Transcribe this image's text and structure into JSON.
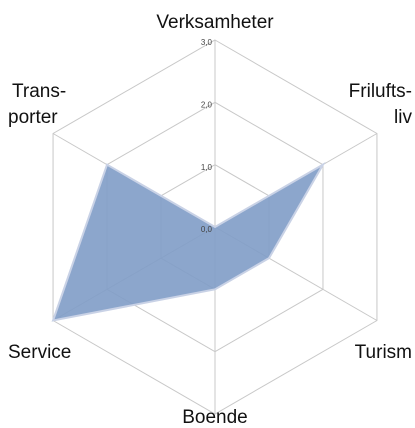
{
  "chart_data": {
    "type": "radar",
    "categories": [
      [
        "Verksamheter"
      ],
      [
        "Frilufts-",
        "liv"
      ],
      [
        "Turism"
      ],
      [
        "Boende"
      ],
      [
        "Service"
      ],
      [
        "Trans-",
        "porter"
      ]
    ],
    "values": [
      0,
      2,
      1,
      1,
      3,
      2
    ],
    "color": "#7f9cc6",
    "ylim": [
      0,
      3
    ],
    "yticks": [
      {
        "value": 0,
        "label": "0,0"
      },
      {
        "value": 1,
        "label": "1,0"
      },
      {
        "value": 2,
        "label": "2,0"
      },
      {
        "value": 3,
        "label": "3,0"
      }
    ],
    "grid": true
  }
}
